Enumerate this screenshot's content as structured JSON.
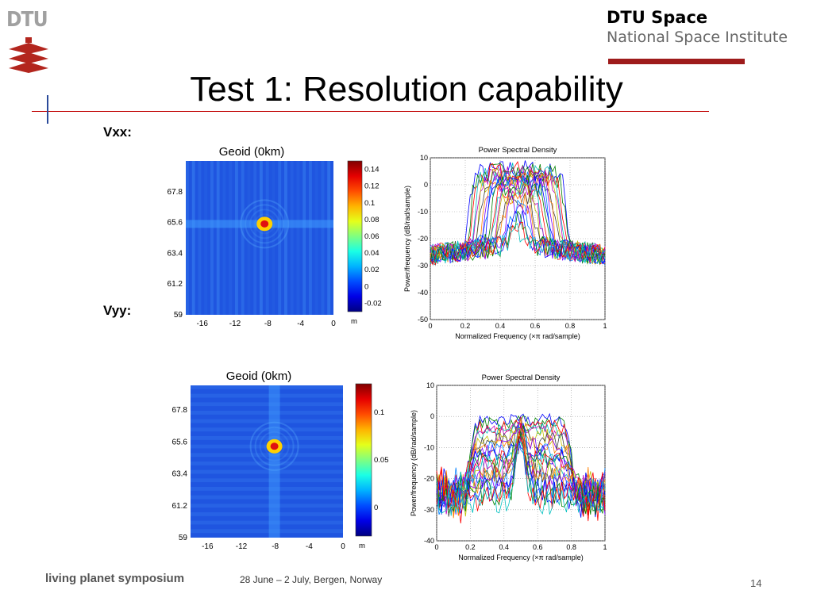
{
  "header": {
    "logo_text": "DTU",
    "brand_line1": "DTU Space",
    "brand_line2": "National Space Institute",
    "title": "Test 1: Resolution capability"
  },
  "labels": {
    "vxx": "Vxx:",
    "vyy": "Vyy:"
  },
  "footer": {
    "symposium": "living planet symposium",
    "date_place": "28 June – 2 July, Bergen, Norway",
    "page": "14"
  },
  "colors": {
    "title_rule": "#c00000",
    "brand_bar": "#9e1b1b",
    "map_bg": "#1f55e0"
  },
  "chart_data": [
    {
      "id": "vxx-geoid",
      "type": "heatmap",
      "title": "Geoid (0km)",
      "x_ticks": [
        -16,
        -12,
        -8,
        -4,
        0
      ],
      "y_ticks": [
        59,
        61.2,
        63.4,
        65.6,
        67.8
      ],
      "xlim": [
        -18,
        0
      ],
      "ylim": [
        59,
        70
      ],
      "peak": {
        "x": -8.4,
        "y": 65.5
      },
      "pattern": "horizontal-stripes",
      "colorbar": {
        "ticks": [
          "0.14",
          "0.12",
          "0.1",
          "0.08",
          "0.06",
          "0.04",
          "0.02",
          "0",
          "-0.02"
        ],
        "unit": "m",
        "range": [
          -0.03,
          0.15
        ]
      }
    },
    {
      "id": "vxx-psd",
      "type": "line",
      "title": "Power Spectral Density",
      "xlabel": "Normalized Frequency  (×π rad/sample)",
      "ylabel": "Power/frequency (dB/rad/sample)",
      "xlim": [
        0,
        1
      ],
      "ylim": [
        -50,
        10
      ],
      "x_ticks": [
        "0",
        "0.2",
        "0.4",
        "0.6",
        "0.8",
        "1"
      ],
      "y_ticks": [
        "10",
        "0",
        "-10",
        "-20",
        "-30",
        "-40",
        "-50"
      ],
      "grid": true,
      "family": {
        "count": 24,
        "shape": "plateau",
        "band": [
          0.24,
          0.8
        ],
        "top_db": -2,
        "floor_db": -30
      }
    },
    {
      "id": "vyy-geoid",
      "type": "heatmap",
      "title": "Geoid (0km)",
      "x_ticks": [
        -16,
        -12,
        -8,
        -4,
        0
      ],
      "y_ticks": [
        59,
        61.2,
        63.4,
        65.6,
        67.8
      ],
      "xlim": [
        -18,
        0
      ],
      "ylim": [
        59,
        69.5
      ],
      "peak": {
        "x": -8.1,
        "y": 65.3
      },
      "pattern": "vertical-stripes",
      "colorbar": {
        "ticks": [
          "0.1",
          "0.05",
          "0"
        ],
        "unit": "m",
        "range": [
          -0.03,
          0.13
        ]
      }
    },
    {
      "id": "vyy-psd",
      "type": "line",
      "title": "Power Spectral Density",
      "xlabel": "Normalized Frequency  (×π rad/sample)",
      "ylabel": "Power/frequency (dB/rad/sample)",
      "xlim": [
        0,
        1
      ],
      "ylim": [
        -40,
        10
      ],
      "x_ticks": [
        "0",
        "0.2",
        "0.4",
        "0.6",
        "0.8",
        "1"
      ],
      "y_ticks": [
        "10",
        "0",
        "-10",
        "-20",
        "-30",
        "-40"
      ],
      "grid": true,
      "family": {
        "count": 24,
        "shape": "notch",
        "band": [
          0.2,
          0.8
        ],
        "top_db": -1,
        "floor_db": -30
      }
    }
  ]
}
